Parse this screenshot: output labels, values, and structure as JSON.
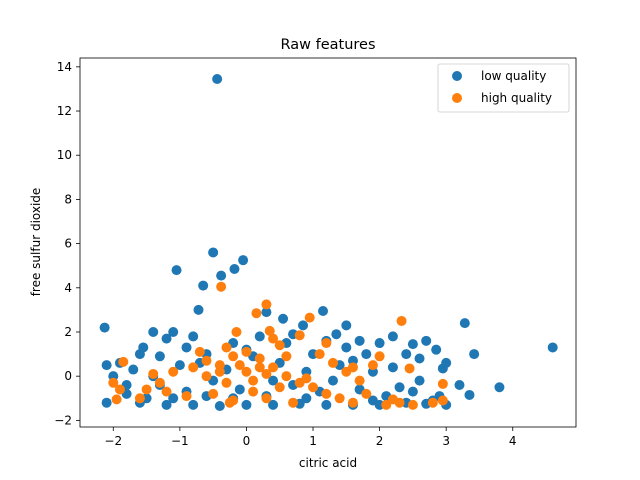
{
  "chart_data": {
    "type": "scatter",
    "title": "Raw features",
    "xlabel": "citric acid",
    "ylabel": "free sulfur dioxide",
    "xlim": [
      -2.5,
      4.95
    ],
    "ylim": [
      -2.3,
      14.4
    ],
    "xticks": [
      -2,
      -1,
      0,
      1,
      2,
      3,
      4
    ],
    "yticks": [
      -2,
      0,
      2,
      4,
      6,
      8,
      10,
      12,
      14
    ],
    "xtick_labels": [
      "−2",
      "−1",
      "0",
      "1",
      "2",
      "3",
      "4"
    ],
    "ytick_labels": [
      "−2",
      "0",
      "2",
      "4",
      "6",
      "8",
      "10",
      "12",
      "14"
    ],
    "grid": false,
    "legend_position": "top-right",
    "series": [
      {
        "name": "low quality",
        "color": "#1f77b4",
        "points": [
          [
            -0.44,
            13.45
          ],
          [
            -0.5,
            5.6
          ],
          [
            -0.05,
            5.25
          ],
          [
            -1.05,
            4.8
          ],
          [
            -0.18,
            4.85
          ],
          [
            -0.38,
            4.55
          ],
          [
            -0.65,
            4.1
          ],
          [
            -0.72,
            3.0
          ],
          [
            -2.13,
            2.2
          ],
          [
            1.15,
            2.95
          ],
          [
            3.28,
            2.4
          ],
          [
            4.6,
            1.3
          ],
          [
            3.42,
            1.0
          ],
          [
            3.35,
            -0.85
          ],
          [
            3.8,
            -0.5
          ],
          [
            2.85,
            1.2
          ],
          [
            2.95,
            0.35
          ],
          [
            3.2,
            -0.4
          ],
          [
            2.7,
            1.6
          ],
          [
            2.6,
            -0.2
          ],
          [
            2.5,
            1.45
          ],
          [
            2.4,
            1.0
          ],
          [
            2.2,
            1.8
          ],
          [
            2.0,
            1.5
          ],
          [
            1.5,
            2.3
          ],
          [
            1.7,
            1.6
          ],
          [
            0.85,
            2.3
          ],
          [
            0.55,
            2.6
          ],
          [
            0.3,
            2.9
          ],
          [
            -1.4,
            2.0
          ],
          [
            -1.2,
            1.7
          ],
          [
            -0.9,
            1.3
          ],
          [
            -1.6,
            1.0
          ],
          [
            -1.9,
            0.6
          ],
          [
            -2.1,
            0.5
          ],
          [
            -1.8,
            -0.4
          ],
          [
            -1.5,
            -1.0
          ],
          [
            -1.2,
            -1.3
          ],
          [
            -0.8,
            -1.3
          ],
          [
            -0.4,
            -1.35
          ],
          [
            0.0,
            -1.3
          ],
          [
            0.4,
            -1.3
          ],
          [
            0.8,
            -1.25
          ],
          [
            1.2,
            -1.3
          ],
          [
            1.6,
            -1.3
          ],
          [
            2.0,
            -1.3
          ],
          [
            2.4,
            -1.2
          ],
          [
            2.8,
            -1.1
          ],
          [
            3.0,
            -1.3
          ],
          [
            2.3,
            -0.5
          ],
          [
            1.9,
            0.2
          ],
          [
            1.4,
            0.5
          ],
          [
            1.0,
            1.0
          ],
          [
            0.6,
            1.5
          ],
          [
            0.2,
            1.8
          ],
          [
            -0.2,
            1.5
          ],
          [
            -0.6,
            1.0
          ],
          [
            -1.0,
            0.5
          ],
          [
            -1.4,
            0.0
          ],
          [
            -1.8,
            -0.8
          ],
          [
            -2.1,
            -1.2
          ],
          [
            -1.7,
            0.3
          ],
          [
            -1.3,
            0.9
          ],
          [
            -0.7,
            0.6
          ],
          [
            -0.3,
            0.3
          ],
          [
            0.1,
            0.9
          ],
          [
            0.5,
            0.6
          ],
          [
            0.9,
            0.2
          ],
          [
            1.3,
            -0.2
          ],
          [
            1.7,
            -0.6
          ],
          [
            2.1,
            -0.9
          ],
          [
            1.1,
            -0.7
          ],
          [
            0.7,
            -0.4
          ],
          [
            0.3,
            -0.9
          ],
          [
            -0.1,
            -0.6
          ],
          [
            -0.5,
            -0.2
          ],
          [
            -0.9,
            -0.7
          ],
          [
            -1.3,
            -0.4
          ],
          [
            -1.6,
            -1.2
          ],
          [
            -2.0,
            0.0
          ],
          [
            1.8,
            1.0
          ],
          [
            1.6,
            0.7
          ],
          [
            2.2,
            0.4
          ],
          [
            2.6,
            0.8
          ],
          [
            3.0,
            0.6
          ],
          [
            2.9,
            -0.9
          ],
          [
            2.5,
            -0.7
          ],
          [
            1.5,
            1.3
          ],
          [
            0.0,
            1.2
          ],
          [
            -0.8,
            1.8
          ],
          [
            -1.1,
            2.0
          ],
          [
            0.7,
            1.9
          ],
          [
            1.2,
            1.6
          ],
          [
            0.4,
            -0.2
          ],
          [
            -0.2,
            -1.0
          ],
          [
            -1.1,
            -1.0
          ],
          [
            1.9,
            -1.1
          ],
          [
            2.7,
            -1.25
          ],
          [
            -0.6,
            -0.9
          ],
          [
            0.9,
            -1.0
          ],
          [
            1.35,
            1.9
          ],
          [
            -1.55,
            1.3
          ]
        ]
      },
      {
        "name": "high quality",
        "color": "#ff7f0e",
        "points": [
          [
            -0.38,
            4.05
          ],
          [
            0.3,
            3.25
          ],
          [
            0.15,
            2.85
          ],
          [
            0.95,
            2.65
          ],
          [
            2.33,
            2.5
          ],
          [
            0.35,
            2.05
          ],
          [
            -0.15,
            2.0
          ],
          [
            0.8,
            1.85
          ],
          [
            1.2,
            1.5
          ],
          [
            -1.85,
            0.65
          ],
          [
            -2.0,
            -0.3
          ],
          [
            -1.95,
            -1.05
          ],
          [
            -1.6,
            -1.0
          ],
          [
            -1.5,
            -0.6
          ],
          [
            -1.3,
            -0.3
          ],
          [
            -1.1,
            0.2
          ],
          [
            -0.8,
            0.4
          ],
          [
            -0.6,
            0.0
          ],
          [
            -0.4,
            0.5
          ],
          [
            -0.2,
            0.9
          ],
          [
            0.0,
            1.1
          ],
          [
            0.2,
            0.8
          ],
          [
            0.4,
            0.4
          ],
          [
            0.6,
            0.0
          ],
          [
            0.8,
            -0.3
          ],
          [
            1.0,
            -0.5
          ],
          [
            1.2,
            -0.8
          ],
          [
            1.4,
            -1.0
          ],
          [
            1.6,
            -1.2
          ],
          [
            1.8,
            -0.8
          ],
          [
            2.0,
            0.9
          ],
          [
            2.2,
            -1.05
          ],
          [
            2.45,
            0.35
          ],
          [
            2.5,
            -1.3
          ],
          [
            2.8,
            -1.2
          ],
          [
            2.95,
            -0.35
          ],
          [
            2.95,
            -1.1
          ],
          [
            1.5,
            0.2
          ],
          [
            1.7,
            -0.2
          ],
          [
            1.1,
            1.0
          ],
          [
            0.5,
            1.4
          ],
          [
            -0.3,
            1.3
          ],
          [
            -0.5,
            -0.8
          ],
          [
            -0.2,
            -1.1
          ],
          [
            0.1,
            -0.7
          ],
          [
            0.3,
            -1.0
          ],
          [
            0.7,
            -1.2
          ],
          [
            -0.9,
            -0.9
          ],
          [
            -0.7,
            1.1
          ],
          [
            0.0,
            0.2
          ],
          [
            0.1,
            -0.2
          ],
          [
            -0.1,
            0.5
          ],
          [
            0.3,
            0.1
          ],
          [
            -0.3,
            -0.3
          ],
          [
            0.2,
            0.4
          ],
          [
            0.5,
            -0.5
          ],
          [
            -0.4,
            0.2
          ],
          [
            1.3,
            0.6
          ],
          [
            1.9,
            0.5
          ],
          [
            2.3,
            -1.2
          ],
          [
            -1.2,
            -0.7
          ],
          [
            -1.4,
            0.1
          ],
          [
            0.6,
            0.9
          ],
          [
            0.9,
            -0.1
          ],
          [
            -0.6,
            0.7
          ],
          [
            1.6,
            0.4
          ],
          [
            2.1,
            -1.3
          ],
          [
            -1.9,
            -0.6
          ],
          [
            0.4,
            1.7
          ],
          [
            -0.25,
            -1.2
          ]
        ]
      }
    ]
  }
}
